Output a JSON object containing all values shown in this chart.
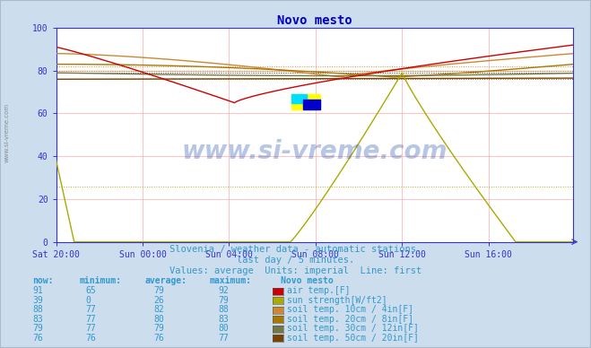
{
  "title": "Novo mesto",
  "bg_color": "#ccdded",
  "plot_bg_color": "#ffffff",
  "xlabel_ticks": [
    "Sat 20:00",
    "Sun 00:00",
    "Sun 04:00",
    "Sun 08:00",
    "Sun 12:00",
    "Sun 16:00"
  ],
  "ylim": [
    0,
    100
  ],
  "xlim": [
    0,
    287
  ],
  "tick_positions": [
    0,
    48,
    96,
    144,
    192,
    240
  ],
  "ylabel_vals": [
    0,
    20,
    40,
    60,
    80,
    100
  ],
  "subtitle1": "Slovenia / weather data - automatic stations.",
  "subtitle2": "last day / 5 minutes.",
  "subtitle3": "Values: average  Units: imperial  Line: first",
  "legend_header": "Novo mesto",
  "legend_rows": [
    {
      "now": "91",
      "min": "65",
      "avg": "79",
      "max": "92",
      "color": "#cc0000",
      "label": "air temp.[F]"
    },
    {
      "now": "39",
      "min": "0",
      "avg": "26",
      "max": "79",
      "color": "#aaaa00",
      "label": "sun strength[W/ft2]"
    },
    {
      "now": "88",
      "min": "77",
      "avg": "82",
      "max": "88",
      "color": "#cc8833",
      "label": "soil temp. 10cm / 4in[F]"
    },
    {
      "now": "83",
      "min": "77",
      "avg": "80",
      "max": "83",
      "color": "#aa7700",
      "label": "soil temp. 20cm / 8in[F]"
    },
    {
      "now": "79",
      "min": "77",
      "avg": "79",
      "max": "80",
      "color": "#777744",
      "label": "soil temp. 30cm / 12in[F]"
    },
    {
      "now": "76",
      "min": "76",
      "avg": "76",
      "max": "77",
      "color": "#7a4400",
      "label": "soil temp. 50cm / 20in[F]"
    }
  ],
  "watermark": "www.si-vreme.com",
  "axis_color": "#3333cc",
  "text_color": "#3399cc",
  "title_color": "#0000cc",
  "dotted_line_colors": [
    "#cc0000",
    "#aaaa00",
    "#cc8833",
    "#aa7700",
    "#777744",
    "#7a4400"
  ],
  "dotted_avgs": [
    79,
    26,
    82,
    80,
    79,
    76
  ],
  "line_colors": [
    "#cc0000",
    "#aaaa00",
    "#cc8833",
    "#aa7700",
    "#777744",
    "#7a4400"
  ]
}
